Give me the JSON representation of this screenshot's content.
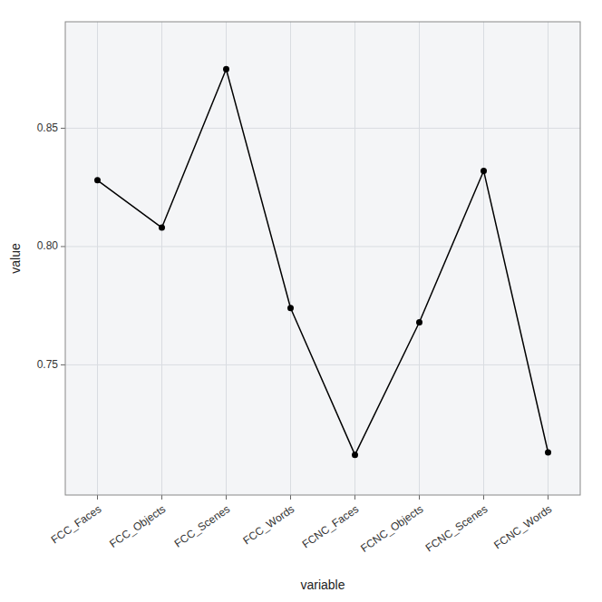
{
  "chart_data": {
    "type": "line",
    "xlabel": "variable",
    "ylabel": "value",
    "categories": [
      "FCC_Faces",
      "FCC_Objects",
      "FCC_Scenes",
      "FCC_Words",
      "FCNC_Faces",
      "FCNC_Objects",
      "FCNC_Scenes",
      "FCNC_Words"
    ],
    "values": [
      0.828,
      0.808,
      0.875,
      0.774,
      0.712,
      0.768,
      0.832,
      0.713
    ],
    "color": "black",
    "marker": "circle",
    "ylim": [
      0.695,
      0.895
    ],
    "yticks": [
      0.75,
      {
        "value": 0.8,
        "label": "0.80"
      },
      0.85
    ],
    "grid": true
  }
}
